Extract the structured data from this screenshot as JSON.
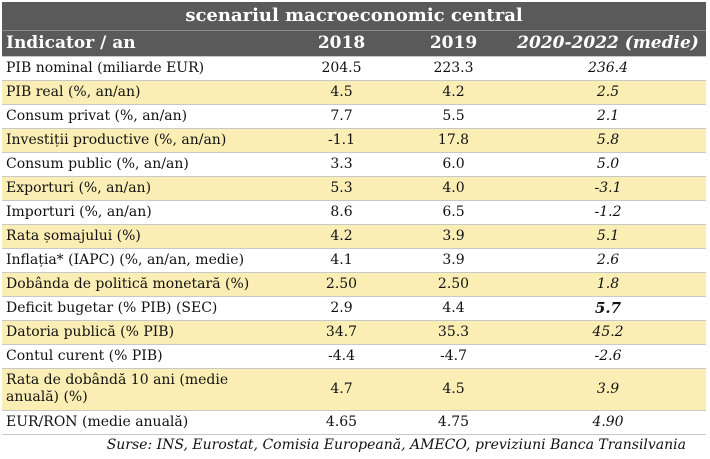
{
  "title": "scenariul macroeconomic central",
  "headers": {
    "indicator": "Indicator / an",
    "y1": "2018",
    "y2": "2019",
    "y3": "2020-2022 (medie)"
  },
  "rows": [
    {
      "label": "PIB nominal (miliarde EUR)",
      "v2018": "204.5",
      "v2019": "223.3",
      "v2020_2022": "236.4"
    },
    {
      "label": "PIB real (%, an/an)",
      "v2018": "4.5",
      "v2019": "4.2",
      "v2020_2022": "2.5"
    },
    {
      "label": "Consum privat (%, an/an)",
      "v2018": "7.7",
      "v2019": "5.5",
      "v2020_2022": "2.1"
    },
    {
      "label": "Investiții productive (%, an/an)",
      "v2018": "-1.1",
      "v2019": "17.8",
      "v2020_2022": "5.8"
    },
    {
      "label": "Consum public (%, an/an)",
      "v2018": "3.3",
      "v2019": "6.0",
      "v2020_2022": "5.0"
    },
    {
      "label": "Exporturi (%, an/an)",
      "v2018": "5.3",
      "v2019": "4.0",
      "v2020_2022": "-3.1"
    },
    {
      "label": "Importuri (%, an/an)",
      "v2018": "8.6",
      "v2019": "6.5",
      "v2020_2022": "-1.2"
    },
    {
      "label": "Rata șomajului (%)",
      "v2018": "4.2",
      "v2019": "3.9",
      "v2020_2022": "5.1"
    },
    {
      "label": "Inflația* (IAPC) (%, an/an, medie)",
      "v2018": "4.1",
      "v2019": "3.9",
      "v2020_2022": "2.6"
    },
    {
      "label": "Dobânda de politică monetară (%)",
      "v2018": "2.50",
      "v2019": "2.50",
      "v2020_2022": "1.8"
    },
    {
      "label": "Deficit bugetar (% PIB) (SEC)",
      "v2018": "2.9",
      "v2019": "4.4",
      "v2020_2022": "5.7"
    },
    {
      "label": "Datoria publică (% PIB)",
      "v2018": "34.7",
      "v2019": "35.3",
      "v2020_2022": "45.2"
    },
    {
      "label": "Contul curent (% PIB)",
      "v2018": "-4.4",
      "v2019": "-4.7",
      "v2020_2022": "-2.6"
    },
    {
      "label": "Rata de dobândă 10 ani (medie anuală) (%)",
      "v2018": "4.7",
      "v2019": "4.5",
      "v2020_2022": "3.9"
    },
    {
      "label": "EUR/RON (medie anuală)",
      "v2018": "4.65",
      "v2019": "4.75",
      "v2020_2022": "4.90"
    }
  ],
  "source": "Surse: INS, Eurostat, Comisia Europeană, AMECO, previziuni Banca Transilvania",
  "colors": {
    "header_bg": "#5a5a5a",
    "header_text": "#ffffff",
    "stripe": "#fbeeb5"
  }
}
